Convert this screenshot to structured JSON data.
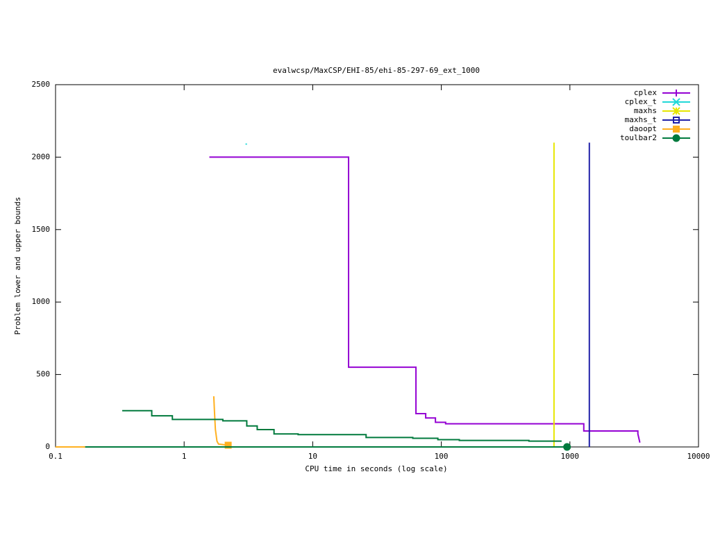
{
  "chart_data": {
    "type": "line",
    "title": "evalwcsp/MaxCSP/EHI-85/ehi-85-297-69_ext_1000",
    "x_label": "CPU time in seconds (log scale)",
    "y_label": "Problem lower and upper bounds",
    "xscale": "log",
    "xlim": [
      0.1,
      10000
    ],
    "xticks": [
      0.1,
      1,
      10,
      100,
      1000,
      10000
    ],
    "ylim": [
      0,
      2500
    ],
    "yticks": [
      0,
      500,
      1000,
      1500,
      2000,
      2500
    ],
    "grid": false,
    "legend": "upper right",
    "series": [
      {
        "name": "cplex",
        "color": "#9400d3",
        "x": [
          1.57,
          19,
          19,
          63.5,
          63.5,
          75.6,
          75.6,
          90,
          90,
          108,
          108,
          1282,
          1282,
          3377,
          3377,
          3500
        ],
        "values": [
          2000,
          2000,
          550,
          550,
          230,
          230,
          200,
          200,
          170,
          170,
          160,
          160,
          110,
          110,
          90,
          30
        ]
      },
      {
        "name": "cplex_t",
        "color": "#20d8d8",
        "x": [
          3.04
        ],
        "values": [
          2090
        ]
      },
      {
        "name": "maxhs",
        "color": "#e6e600",
        "x": [
          752,
          752
        ],
        "values": [
          0,
          2100
        ]
      },
      {
        "name": "maxhs_t",
        "color": "#2020a8",
        "x": [
          1416,
          1416
        ],
        "values": [
          0,
          2100
        ]
      },
      {
        "name": "daoopt",
        "color": "#ffb020",
        "x": [
          0.1,
          0.17,
          null,
          1.7,
          1.72,
          1.75,
          1.8,
          1.85,
          2.2
        ],
        "values": [
          0,
          0,
          null,
          350,
          250,
          120,
          40,
          20,
          12
        ]
      },
      {
        "name": "toulbar2",
        "color": "#007a3d",
        "x": [
          0.33,
          0.56,
          0.56,
          0.81,
          0.81,
          2.0,
          2.0,
          3.07,
          3.07,
          3.7,
          3.7,
          5.0,
          5.0,
          7.7,
          7.7,
          26,
          26,
          60,
          60,
          94,
          94,
          138,
          138,
          480,
          480,
          862,
          null,
          0.17,
          950
        ],
        "values": [
          250,
          250,
          215,
          215,
          190,
          190,
          180,
          180,
          145,
          145,
          120,
          120,
          90,
          90,
          85,
          85,
          65,
          65,
          60,
          60,
          50,
          50,
          45,
          45,
          40,
          40,
          null,
          0,
          0
        ]
      }
    ]
  }
}
